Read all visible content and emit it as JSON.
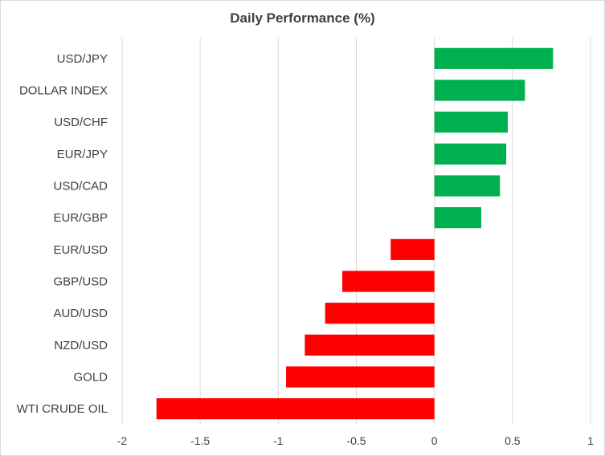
{
  "chart_data": {
    "type": "bar",
    "orientation": "horizontal",
    "title": "Daily Performance (%)",
    "categories": [
      "USD/JPY",
      "DOLLAR INDEX",
      "USD/CHF",
      "EUR/JPY",
      "USD/CAD",
      "EUR/GBP",
      "EUR/USD",
      "GBP/USD",
      "AUD/USD",
      "NZD/USD",
      "GOLD",
      "WTI CRUDE OIL"
    ],
    "values": [
      0.76,
      0.58,
      0.47,
      0.46,
      0.42,
      0.3,
      -0.28,
      -0.59,
      -0.7,
      -0.83,
      -0.95,
      -1.78
    ],
    "xlim": [
      -2,
      1
    ],
    "xticks": [
      -2,
      -1.5,
      -1,
      -0.5,
      0,
      0.5,
      1
    ],
    "xtick_labels": [
      "-2",
      "-1.5",
      "-1",
      "-0.5",
      "0",
      "0.5",
      "1"
    ],
    "xlabel": "",
    "ylabel": "",
    "grid": "vertical",
    "legend": "none",
    "colors": {
      "positive": "#00b050",
      "negative": "#ff0000",
      "grid": "#d9d9d9",
      "text": "#404040"
    }
  }
}
